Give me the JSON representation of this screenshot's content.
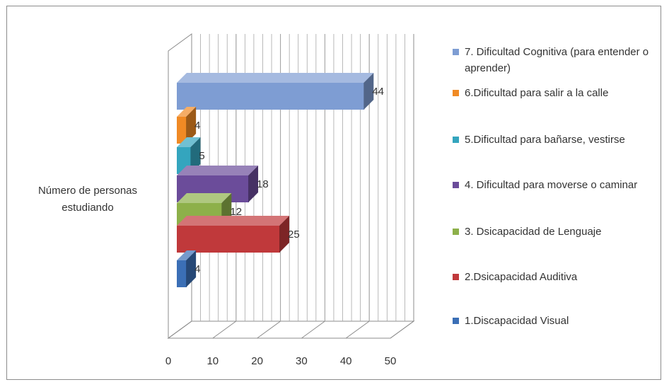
{
  "chart_data": {
    "type": "bar",
    "orientation": "horizontal",
    "style": "3d-clustered",
    "category": "Número de personas estudiando",
    "xlim": [
      0,
      50
    ],
    "xticks": [
      "0",
      "10",
      "20",
      "30",
      "40",
      "50"
    ],
    "grid": true,
    "legend_position": "right",
    "series": [
      {
        "name": "1.Discapacidad Visual",
        "value": 4,
        "label": "4",
        "color": "#3b6fb6"
      },
      {
        "name": "2.Dsicapacidad Auditiva",
        "value": 25,
        "label": "25",
        "color": "#c0393b"
      },
      {
        "name": "3. Dsicapacidad de Lenguaje",
        "value": 12,
        "label": "12",
        "color": "#8db04a"
      },
      {
        "name": "4. Dificultad para moverse o caminar",
        "value": 18,
        "label": "18",
        "color": "#6b4c9a"
      },
      {
        "name": "5.Dificultad para bañarse, vestirse",
        "value": 5,
        "label": "5",
        "color": "#34a5be"
      },
      {
        "name": "6.Dificultad para salir a la calle",
        "value": 4,
        "label": "4",
        "color": "#f08a24"
      },
      {
        "name": "7. Dificultad  Cognitiva (para entender o aprender)",
        "value": 44,
        "label": "44",
        "color": "#7e9dd3"
      }
    ]
  }
}
